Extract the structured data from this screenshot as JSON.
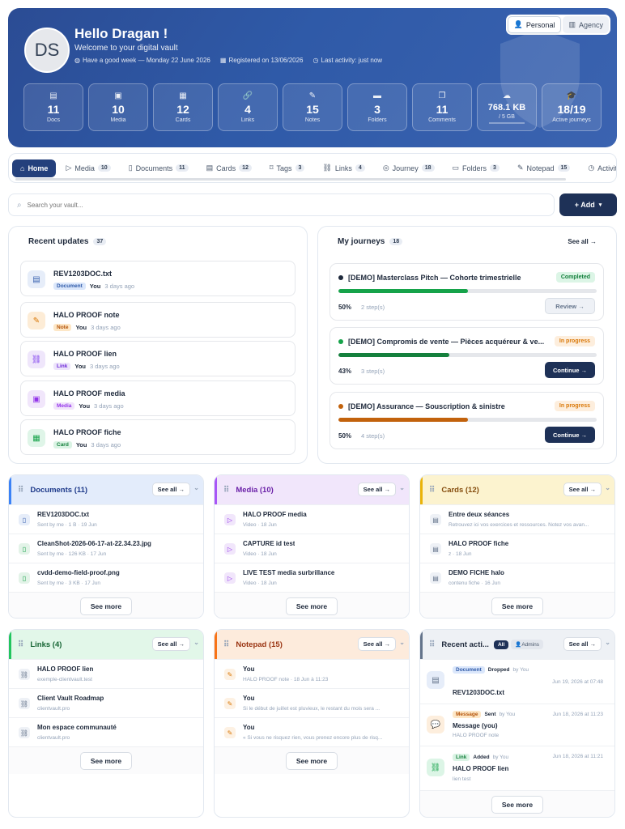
{
  "hero": {
    "avatar_initials": "DS",
    "greeting": "Hello Dragan !",
    "subtitle": "Welcome to your digital vault",
    "meta": [
      "Have a good week — Monday 22 June 2026",
      "Registered on 13/06/2026",
      "Last activity: just now"
    ],
    "toggle": {
      "personal": "Personal",
      "agency": "Agency"
    },
    "stats": [
      {
        "icon": "document-icon",
        "value": "11",
        "label": "Docs"
      },
      {
        "icon": "media-icon",
        "value": "10",
        "label": "Media"
      },
      {
        "icon": "cards-icon",
        "value": "12",
        "label": "Cards"
      },
      {
        "icon": "link-icon",
        "value": "4",
        "label": "Links"
      },
      {
        "icon": "notes-icon",
        "value": "15",
        "label": "Notes"
      },
      {
        "icon": "folder-icon",
        "value": "3",
        "label": "Folders"
      },
      {
        "icon": "comments-icon",
        "value": "11",
        "label": "Comments"
      },
      {
        "icon": "cloud-icon",
        "value": "768.1 KB",
        "label": "/ 5 GB",
        "storage_used_fraction": 0.0002
      },
      {
        "icon": "graduation-icon",
        "value": "18/19",
        "label": "Active journeys"
      }
    ]
  },
  "tabs": [
    {
      "label": "Home",
      "count": ""
    },
    {
      "label": "Media",
      "count": "10"
    },
    {
      "label": "Documents",
      "count": "11"
    },
    {
      "label": "Cards",
      "count": "12"
    },
    {
      "label": "Tags",
      "count": "3"
    },
    {
      "label": "Links",
      "count": "4"
    },
    {
      "label": "Journey",
      "count": "18"
    },
    {
      "label": "Folders",
      "count": "3"
    },
    {
      "label": "Notepad",
      "count": "15"
    },
    {
      "label": "Activity",
      "count": ""
    }
  ],
  "search": {
    "placeholder": "Search your vault..."
  },
  "add_button": "+ Add",
  "recent_updates": {
    "title": "Recent updates",
    "count": "37",
    "items": [
      {
        "name": "REV1203DOC.txt",
        "type": "Document",
        "by": "You",
        "time": "3 days ago"
      },
      {
        "name": "HALO PROOF note",
        "type": "Note",
        "by": "You",
        "time": "3 days ago"
      },
      {
        "name": "HALO PROOF lien",
        "type": "Link",
        "by": "You",
        "time": "3 days ago"
      },
      {
        "name": "HALO PROOF media",
        "type": "Media",
        "by": "You",
        "time": "3 days ago"
      },
      {
        "name": "HALO PROOF fiche",
        "type": "Card",
        "by": "You",
        "time": "3 days ago"
      }
    ]
  },
  "journeys": {
    "title": "My journeys",
    "count": "18",
    "see_all": "See all →",
    "items": [
      {
        "title": "[DEMO] Masterclass Pitch — Cohorte trimestrielle",
        "status": "Completed",
        "percent": "50%",
        "progress": 0.5,
        "steps": "2 step(s)",
        "button": "Review →"
      },
      {
        "title": "[DEMO] Compromis de vente — Pièces acquéreur & ve...",
        "status": "In progress",
        "percent": "43%",
        "progress": 0.43,
        "steps": "3 step(s)",
        "button": "Continue →"
      },
      {
        "title": "[DEMO] Assurance — Souscription & sinistre",
        "status": "In progress",
        "percent": "50%",
        "progress": 0.5,
        "steps": "4 step(s)",
        "button": "Continue →"
      }
    ]
  },
  "modules": {
    "see_all": "See all →",
    "see_more": "See more",
    "documents": {
      "title": "Documents (11)",
      "rows": [
        {
          "title": "REV1203DOC.txt",
          "sub": "Sent by me · 1 B · 19 Jun"
        },
        {
          "title": "CleanShot-2026-06-17-at-22.34.23.jpg",
          "sub": "Sent by me · 126 KB · 17 Jun"
        },
        {
          "title": "cvdd-demo-field-proof.png",
          "sub": "Sent by me · 3 KB · 17 Jun"
        }
      ]
    },
    "media": {
      "title": "Media (10)",
      "rows": [
        {
          "title": "HALO PROOF media",
          "sub": "Video · 18 Jun"
        },
        {
          "title": "CAPTURE id test",
          "sub": "Video · 18 Jun"
        },
        {
          "title": "LIVE TEST media surbrillance",
          "sub": "Video · 18 Jun"
        }
      ]
    },
    "cards": {
      "title": "Cards (12)",
      "rows": [
        {
          "title": "Entre deux séances",
          "sub": "Retrouvez ici vos exercices et ressources. Notez vos avan..."
        },
        {
          "title": "HALO PROOF fiche",
          "sub": "z · 18 Jun"
        },
        {
          "title": "DEMO FICHE halo",
          "sub": "contenu fiche · 16 Jun"
        }
      ]
    },
    "links": {
      "title": "Links (4)",
      "rows": [
        {
          "title": "HALO PROOF lien",
          "sub": "exemple-clientvault.test"
        },
        {
          "title": "Client Vault Roadmap",
          "sub": "clientvault.pro"
        },
        {
          "title": "Mon espace communauté",
          "sub": "clientvault.pro"
        }
      ]
    },
    "notepad": {
      "title": "Notepad (15)",
      "rows": [
        {
          "title": "You",
          "sub": "HALO PROOF note · 18 Jun à 11:23"
        },
        {
          "title": "You",
          "sub": "Si le début de juillet est pluvieux, le restant du mois sera ..."
        },
        {
          "title": "You",
          "sub": "« Si vous ne risquez rien, vous prenez encore plus de risq..."
        }
      ]
    },
    "activity": {
      "title": "Recent acti...",
      "filter_all": "All",
      "filter_admins": "Admins",
      "items": [
        {
          "badge": "Document",
          "action": "Dropped",
          "by": "by You",
          "time": "Jun 19, 2026 at 07:48",
          "title": "REV1203DOC.txt",
          "sub": ""
        },
        {
          "badge": "Message",
          "action": "Sent",
          "by": "by You",
          "time": "Jun 18, 2026 at 11:23",
          "title": "Message (you)",
          "sub": "HALO PROOF note"
        },
        {
          "badge": "Link",
          "action": "Added",
          "by": "by You",
          "time": "Jun 18, 2026 at 11:21",
          "title": "HALO PROOF lien",
          "sub": "lien test"
        }
      ]
    }
  }
}
